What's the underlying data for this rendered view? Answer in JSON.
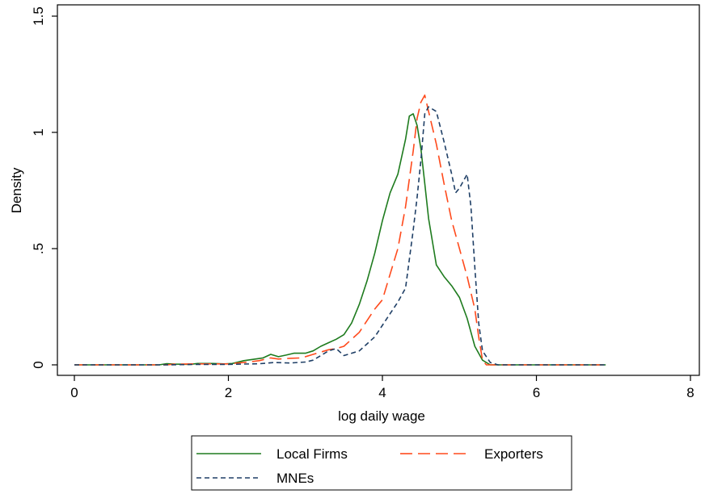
{
  "chart_data": {
    "type": "line",
    "xlabel": "log daily wage",
    "ylabel": "Density",
    "xlim": [
      0,
      8
    ],
    "ylim": [
      0,
      1.5
    ],
    "x_ticks": [
      0,
      2,
      4,
      6,
      8
    ],
    "x_tick_labels": [
      "0",
      "2",
      "4",
      "6",
      "8"
    ],
    "y_ticks": [
      0,
      0.5,
      1,
      1.5
    ],
    "y_tick_labels": [
      "0",
      ".5",
      "1",
      "1.5"
    ],
    "grid": false,
    "legend": "bottom",
    "series": [
      {
        "name": "Local Firms",
        "color": "#1e7b1e",
        "dash": "solid",
        "points": [
          [
            0,
            0
          ],
          [
            1.1,
            0
          ],
          [
            1.2,
            0.005
          ],
          [
            1.3,
            0.003
          ],
          [
            1.5,
            0.002
          ],
          [
            1.6,
            0.006
          ],
          [
            1.8,
            0.006
          ],
          [
            1.95,
            0.004
          ],
          [
            2.05,
            0.006
          ],
          [
            2.2,
            0.018
          ],
          [
            2.35,
            0.025
          ],
          [
            2.45,
            0.03
          ],
          [
            2.55,
            0.045
          ],
          [
            2.65,
            0.035
          ],
          [
            2.75,
            0.042
          ],
          [
            2.85,
            0.05
          ],
          [
            3.0,
            0.05
          ],
          [
            3.1,
            0.06
          ],
          [
            3.2,
            0.08
          ],
          [
            3.3,
            0.095
          ],
          [
            3.4,
            0.11
          ],
          [
            3.5,
            0.13
          ],
          [
            3.6,
            0.18
          ],
          [
            3.7,
            0.26
          ],
          [
            3.8,
            0.36
          ],
          [
            3.9,
            0.48
          ],
          [
            4.0,
            0.62
          ],
          [
            4.1,
            0.74
          ],
          [
            4.2,
            0.82
          ],
          [
            4.3,
            0.97
          ],
          [
            4.35,
            1.07
          ],
          [
            4.4,
            1.08
          ],
          [
            4.45,
            1.03
          ],
          [
            4.5,
            0.93
          ],
          [
            4.55,
            0.78
          ],
          [
            4.6,
            0.63
          ],
          [
            4.7,
            0.43
          ],
          [
            4.8,
            0.38
          ],
          [
            4.9,
            0.34
          ],
          [
            5.0,
            0.29
          ],
          [
            5.1,
            0.2
          ],
          [
            5.2,
            0.08
          ],
          [
            5.3,
            0.02
          ],
          [
            5.4,
            0
          ],
          [
            6.9,
            0
          ]
        ]
      },
      {
        "name": "Exporters",
        "color": "#ff4a1c",
        "dash": "long-dash",
        "points": [
          [
            0,
            0
          ],
          [
            1.2,
            0
          ],
          [
            1.3,
            0.003
          ],
          [
            1.6,
            0.004
          ],
          [
            1.8,
            0.004
          ],
          [
            2.0,
            0.004
          ],
          [
            2.2,
            0.01
          ],
          [
            2.4,
            0.018
          ],
          [
            2.55,
            0.03
          ],
          [
            2.65,
            0.025
          ],
          [
            2.8,
            0.028
          ],
          [
            2.95,
            0.03
          ],
          [
            3.1,
            0.045
          ],
          [
            3.2,
            0.055
          ],
          [
            3.3,
            0.065
          ],
          [
            3.4,
            0.07
          ],
          [
            3.5,
            0.08
          ],
          [
            3.6,
            0.11
          ],
          [
            3.7,
            0.14
          ],
          [
            3.8,
            0.19
          ],
          [
            3.9,
            0.24
          ],
          [
            4.0,
            0.28
          ],
          [
            4.1,
            0.39
          ],
          [
            4.2,
            0.5
          ],
          [
            4.3,
            0.68
          ],
          [
            4.4,
            0.92
          ],
          [
            4.45,
            1.06
          ],
          [
            4.5,
            1.13
          ],
          [
            4.55,
            1.16
          ],
          [
            4.6,
            1.09
          ],
          [
            4.7,
            0.95
          ],
          [
            4.8,
            0.78
          ],
          [
            4.9,
            0.62
          ],
          [
            5.0,
            0.5
          ],
          [
            5.1,
            0.38
          ],
          [
            5.2,
            0.24
          ],
          [
            5.25,
            0.12
          ],
          [
            5.3,
            0.02
          ],
          [
            5.35,
            0
          ],
          [
            6.9,
            0
          ]
        ]
      },
      {
        "name": "MNEs",
        "color": "#1f3f66",
        "dash": "short-dash",
        "points": [
          [
            0,
            0
          ],
          [
            1.2,
            0
          ],
          [
            1.6,
            0.002
          ],
          [
            2.0,
            0.002
          ],
          [
            2.4,
            0.005
          ],
          [
            2.6,
            0.01
          ],
          [
            2.8,
            0.008
          ],
          [
            3.0,
            0.012
          ],
          [
            3.1,
            0.02
          ],
          [
            3.2,
            0.04
          ],
          [
            3.3,
            0.06
          ],
          [
            3.4,
            0.07
          ],
          [
            3.5,
            0.04
          ],
          [
            3.6,
            0.05
          ],
          [
            3.7,
            0.06
          ],
          [
            3.8,
            0.09
          ],
          [
            3.9,
            0.12
          ],
          [
            4.0,
            0.17
          ],
          [
            4.1,
            0.22
          ],
          [
            4.2,
            0.27
          ],
          [
            4.3,
            0.33
          ],
          [
            4.4,
            0.58
          ],
          [
            4.45,
            0.72
          ],
          [
            4.5,
            0.88
          ],
          [
            4.55,
            1.08
          ],
          [
            4.6,
            1.11
          ],
          [
            4.7,
            1.09
          ],
          [
            4.8,
            0.96
          ],
          [
            4.9,
            0.82
          ],
          [
            4.95,
            0.74
          ],
          [
            5.0,
            0.76
          ],
          [
            5.05,
            0.79
          ],
          [
            5.1,
            0.82
          ],
          [
            5.15,
            0.68
          ],
          [
            5.2,
            0.42
          ],
          [
            5.25,
            0.18
          ],
          [
            5.3,
            0.06
          ],
          [
            5.4,
            0.01
          ],
          [
            5.5,
            0
          ],
          [
            6.9,
            0
          ]
        ]
      }
    ]
  }
}
